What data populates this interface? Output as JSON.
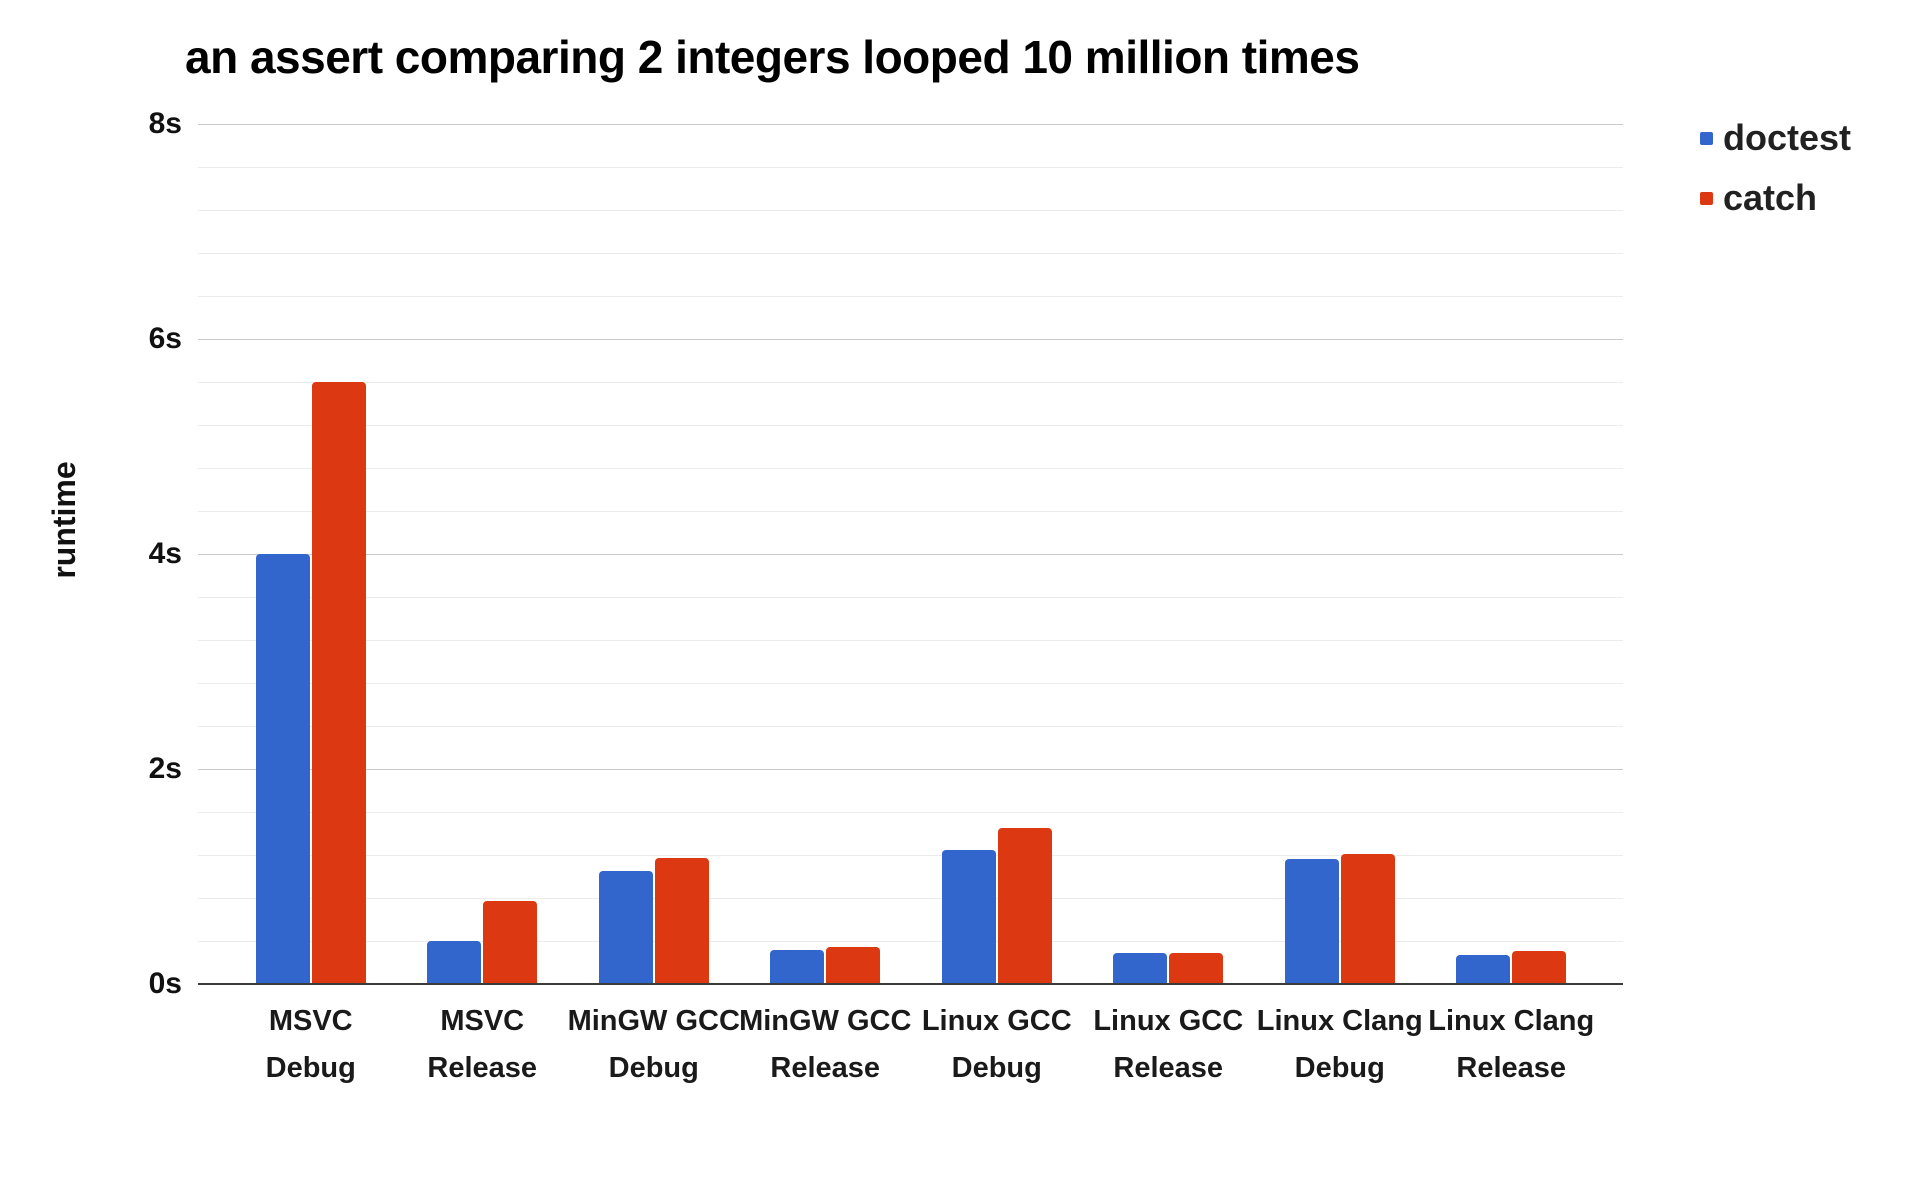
{
  "chart_data": {
    "type": "bar",
    "title": "an assert comparing 2 integers looped 10 million times",
    "ylabel": "runtime",
    "xlabel": "",
    "categories": [
      "MSVC Debug",
      "MSVC Release",
      "MinGW GCC Debug",
      "MinGW GCC Release",
      "Linux GCC Debug",
      "Linux GCC Release",
      "Linux Clang Debug",
      "Linux Clang Release"
    ],
    "series": [
      {
        "name": "doctest",
        "color": "#3366CC",
        "values": [
          4.0,
          0.4,
          1.05,
          0.32,
          1.25,
          0.29,
          1.16,
          0.27
        ]
      },
      {
        "name": "catch",
        "color": "#DC3912",
        "values": [
          5.6,
          0.77,
          1.17,
          0.34,
          1.45,
          0.29,
          1.21,
          0.31
        ]
      }
    ],
    "y_ticks": [
      {
        "value": 0,
        "label": "0s"
      },
      {
        "value": 2,
        "label": "2s"
      },
      {
        "value": 4,
        "label": "4s"
      },
      {
        "value": 6,
        "label": "6s"
      },
      {
        "value": 8,
        "label": "8s"
      }
    ],
    "ylim": [
      0,
      8
    ],
    "minor_gridline_step": 0.4,
    "grid": true,
    "legend_position": "top-right",
    "background_color": "#ffffff",
    "major_gridline_color": "#c9c9c9",
    "minor_gridline_color": "#ececec"
  }
}
